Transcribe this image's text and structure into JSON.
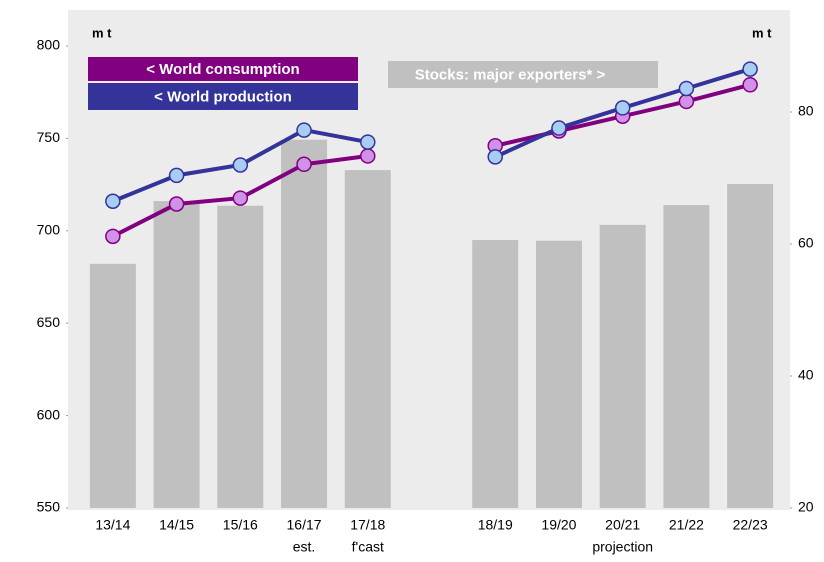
{
  "chart_data": {
    "type": "bar_line",
    "categories": [
      "13/14",
      "14/15",
      "15/16",
      "16/17",
      "17/18",
      null,
      "18/19",
      "19/20",
      "20/21",
      "21/22",
      "22/23"
    ],
    "series": [
      {
        "name": "Stocks: major exporters* >",
        "type": "bar",
        "axis": "y2",
        "color": "#c0c0c0",
        "values": [
          57,
          66.5,
          65.8,
          75.8,
          71.2,
          null,
          60.6,
          60.5,
          62.9,
          65.9,
          69.1
        ]
      },
      {
        "name": "< World consumption",
        "type": "line",
        "color": "#800080",
        "marker_color": "#d291e8",
        "values": [
          697,
          714.5,
          717.7,
          736,
          740.5,
          null,
          746,
          754,
          762,
          770,
          779
        ]
      },
      {
        "name": "< World production",
        "type": "line",
        "color": "#333399",
        "marker_color": "#a9cdf2",
        "values": [
          716,
          730,
          735.6,
          754.5,
          748,
          null,
          740,
          755.6,
          766.5,
          777,
          787.5
        ]
      }
    ],
    "ylim": [
      550,
      800
    ],
    "yticks": [
      550,
      600,
      650,
      700,
      750,
      800
    ],
    "y2lim": [
      20,
      90
    ],
    "y2ticks": [
      20,
      40,
      60,
      80
    ],
    "y_unit": "m t",
    "y2_unit": "m t",
    "annotations": [
      "est.",
      "f'cast",
      "projection"
    ]
  }
}
